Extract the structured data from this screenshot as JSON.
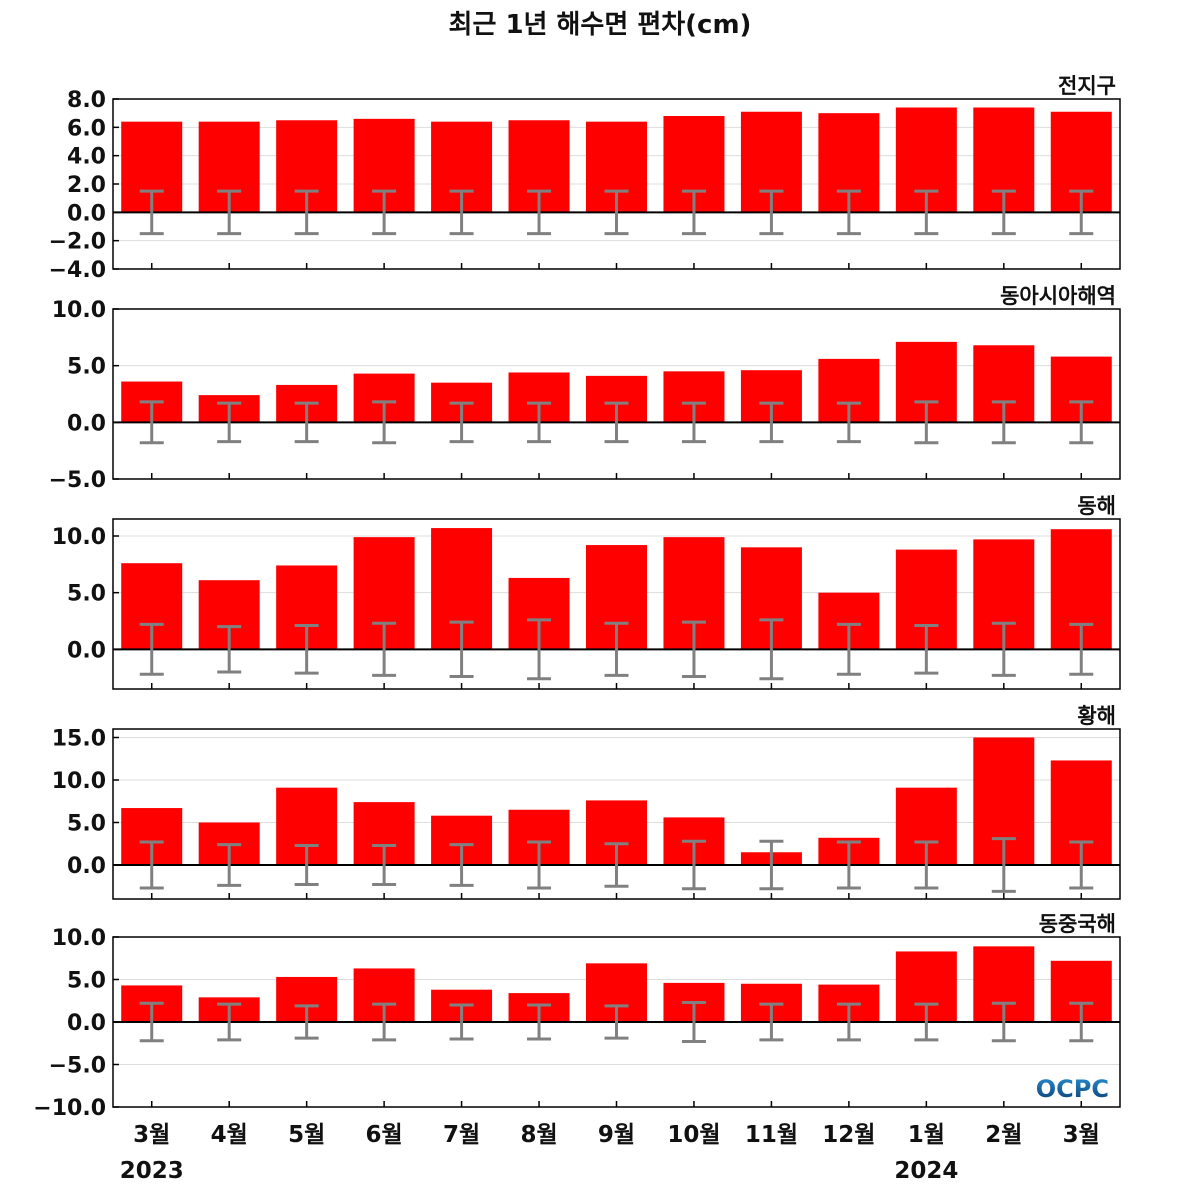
{
  "title": "최근 1년 해수면 편차(cm)",
  "logo_text": "OCPC",
  "colors": {
    "bar": "#ff0000",
    "error": "#808080",
    "zero_line": "#000000",
    "grid": "#dddddd",
    "logo_top": "#2a8fd0",
    "logo_bottom": "#0a3d73"
  },
  "chart_data": [
    {
      "type": "bar",
      "title": "전지구",
      "categories": [
        "3월",
        "4월",
        "5월",
        "6월",
        "7월",
        "8월",
        "9월",
        "10월",
        "11월",
        "12월",
        "1월",
        "2월",
        "3월"
      ],
      "values": [
        6.4,
        6.4,
        6.5,
        6.6,
        6.4,
        6.5,
        6.4,
        6.8,
        7.1,
        7.0,
        7.4,
        7.4,
        7.1
      ],
      "error": [
        1.5,
        1.5,
        1.5,
        1.5,
        1.5,
        1.5,
        1.5,
        1.5,
        1.5,
        1.5,
        1.5,
        1.5,
        1.5
      ],
      "ylim": [
        -4,
        8
      ],
      "yticks": [
        -4,
        -2,
        0,
        2,
        4,
        6,
        8
      ],
      "ytick_labels": [
        "−4.0",
        "−2.0",
        "0.0",
        "2.0",
        "4.0",
        "6.0",
        "8.0"
      ],
      "grid": true
    },
    {
      "type": "bar",
      "title": "동아시아해역",
      "categories": [
        "3월",
        "4월",
        "5월",
        "6월",
        "7월",
        "8월",
        "9월",
        "10월",
        "11월",
        "12월",
        "1월",
        "2월",
        "3월"
      ],
      "values": [
        3.6,
        2.4,
        3.3,
        4.3,
        3.5,
        4.4,
        4.1,
        4.5,
        4.6,
        5.6,
        7.1,
        6.8,
        5.8
      ],
      "error": [
        1.8,
        1.7,
        1.7,
        1.8,
        1.7,
        1.7,
        1.7,
        1.7,
        1.7,
        1.7,
        1.8,
        1.8,
        1.8
      ],
      "ylim": [
        -5,
        10
      ],
      "yticks": [
        -5,
        0,
        5,
        10
      ],
      "ytick_labels": [
        "−5.0",
        "0.0",
        "5.0",
        "10.0"
      ],
      "grid": true
    },
    {
      "type": "bar",
      "title": "동해",
      "categories": [
        "3월",
        "4월",
        "5월",
        "6월",
        "7월",
        "8월",
        "9월",
        "10월",
        "11월",
        "12월",
        "1월",
        "2월",
        "3월"
      ],
      "values": [
        7.6,
        6.1,
        7.4,
        9.9,
        10.7,
        6.3,
        9.2,
        9.9,
        9.0,
        5.0,
        8.8,
        9.7,
        10.6
      ],
      "error": [
        2.2,
        2.0,
        2.1,
        2.3,
        2.4,
        2.6,
        2.3,
        2.4,
        2.6,
        2.2,
        2.1,
        2.3,
        2.2
      ],
      "ylim": [
        -3.5,
        11.5
      ],
      "yticks": [
        0,
        5,
        10
      ],
      "ytick_labels": [
        "0.0",
        "5.0",
        "10.0"
      ],
      "grid": true
    },
    {
      "type": "bar",
      "title": "황해",
      "categories": [
        "3월",
        "4월",
        "5월",
        "6월",
        "7월",
        "8월",
        "9월",
        "10월",
        "11월",
        "12월",
        "1월",
        "2월",
        "3월"
      ],
      "values": [
        6.7,
        5.0,
        9.1,
        7.4,
        5.8,
        6.5,
        7.6,
        5.6,
        1.5,
        3.2,
        9.1,
        15.0,
        12.3
      ],
      "error": [
        2.7,
        2.4,
        2.3,
        2.3,
        2.4,
        2.7,
        2.5,
        2.8,
        2.8,
        2.7,
        2.7,
        3.1,
        2.7
      ],
      "ylim": [
        -4,
        16
      ],
      "yticks": [
        0,
        5,
        10,
        15
      ],
      "ytick_labels": [
        "0.0",
        "5.0",
        "10.0",
        "15.0"
      ],
      "grid": true
    },
    {
      "type": "bar",
      "title": "동중국해",
      "categories": [
        "3월",
        "4월",
        "5월",
        "6월",
        "7월",
        "8월",
        "9월",
        "10월",
        "11월",
        "12월",
        "1월",
        "2월",
        "3월"
      ],
      "values": [
        4.3,
        2.9,
        5.3,
        6.3,
        3.8,
        3.4,
        6.9,
        4.6,
        4.5,
        4.4,
        8.3,
        8.9,
        7.2
      ],
      "error": [
        2.2,
        2.1,
        1.9,
        2.1,
        2.0,
        2.0,
        1.9,
        2.3,
        2.1,
        2.1,
        2.1,
        2.2,
        2.2
      ],
      "ylim": [
        -10,
        10
      ],
      "yticks": [
        -10,
        -5,
        0,
        5,
        10
      ],
      "ytick_labels": [
        "−10.0",
        "−5.0",
        "0.0",
        "5.0",
        "10.0"
      ],
      "grid": true
    }
  ],
  "x_axis": {
    "labels": [
      "3월",
      "4월",
      "5월",
      "6월",
      "7월",
      "8월",
      "9월",
      "10월",
      "11월",
      "12월",
      "1월",
      "2월",
      "3월"
    ],
    "years": [
      {
        "label": "2023",
        "index": 0
      },
      {
        "label": "2024",
        "index": 10
      }
    ]
  }
}
